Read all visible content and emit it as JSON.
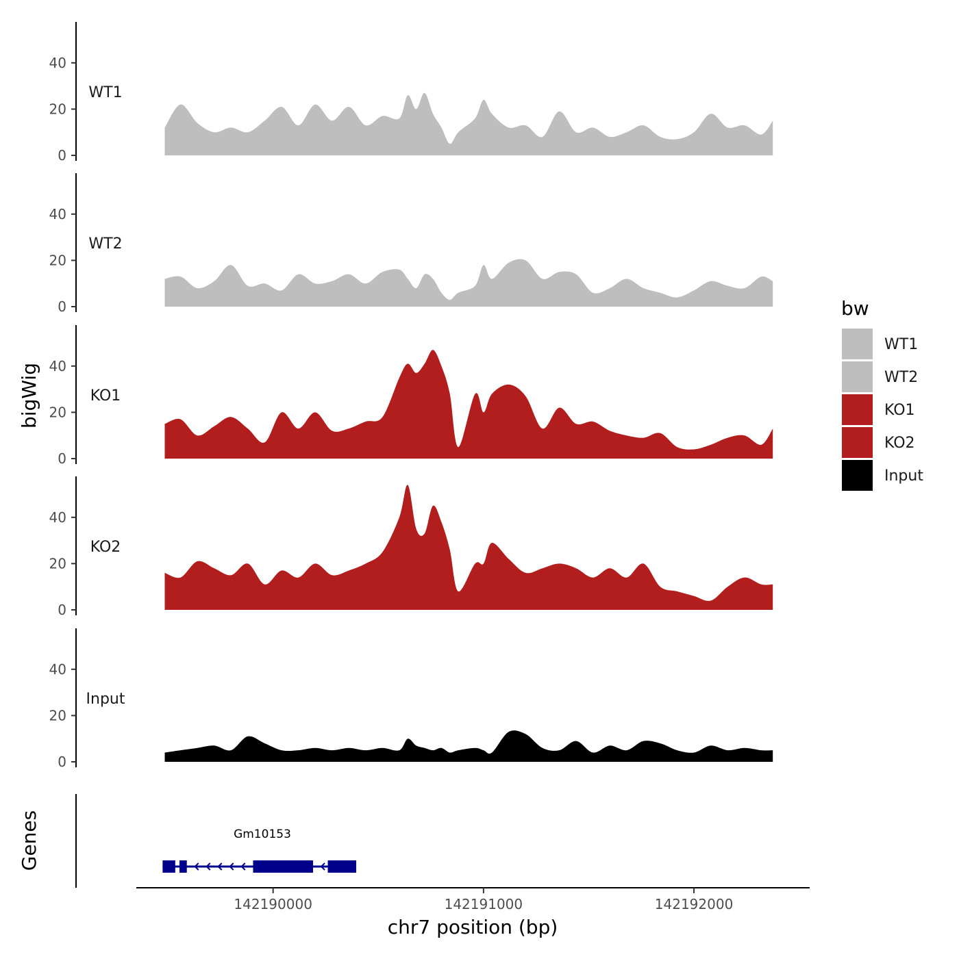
{
  "chart_data": {
    "type": "area",
    "title": "",
    "xlabel": "chr7 position (bp)",
    "ylabel": "bigWig",
    "genes_label": "Genes",
    "xlim": [
      142189350,
      142192550
    ],
    "ylim": [
      0,
      57
    ],
    "x_ticks": [
      142190000,
      142191000,
      142192000
    ],
    "x_tick_labels": [
      "142190000",
      "142191000",
      "142192000"
    ],
    "y_ticks": [
      0,
      20,
      40
    ],
    "y_tick_labels": [
      "0",
      "20",
      "40"
    ],
    "legend": {
      "title": "bw",
      "position": "right",
      "items": [
        {
          "label": "WT1",
          "color": "#bebebe"
        },
        {
          "label": "WT2",
          "color": "#bebebe"
        },
        {
          "label": "KO1",
          "color": "#b21e1e"
        },
        {
          "label": "KO2",
          "color": "#b21e1e"
        },
        {
          "label": "Input",
          "color": "#000000"
        }
      ]
    },
    "x": [
      142189485,
      142189560,
      142189640,
      142189720,
      142189800,
      142189880,
      142189960,
      142190040,
      142190120,
      142190200,
      142190280,
      142190360,
      142190440,
      142190520,
      142190600,
      142190640,
      142190680,
      142190720,
      142190760,
      142190800,
      142190840,
      142190880,
      142190960,
      142191000,
      142191040,
      142191120,
      142191200,
      142191280,
      142191360,
      142191440,
      142191520,
      142191600,
      142191680,
      142191760,
      142191840,
      142191920,
      142192000,
      142192080,
      142192160,
      142192240,
      142192320,
      142192375
    ],
    "series": [
      {
        "name": "WT1",
        "color": "#bebebe",
        "values": [
          12,
          22,
          14,
          10,
          12,
          10,
          15,
          21,
          13,
          22,
          15,
          21,
          13,
          17,
          16,
          26,
          20,
          27,
          18,
          12,
          5,
          10,
          16,
          24,
          18,
          12,
          13,
          8,
          19,
          10,
          12,
          8,
          10,
          13,
          8,
          7,
          10,
          18,
          12,
          13,
          9,
          15
        ]
      },
      {
        "name": "WT2",
        "color": "#bebebe",
        "values": [
          12,
          13,
          8,
          11,
          18,
          9,
          10,
          7,
          14,
          10,
          11,
          14,
          10,
          15,
          16,
          12,
          8,
          14,
          12,
          6,
          3,
          6,
          9,
          18,
          12,
          19,
          20,
          12,
          15,
          14,
          6,
          8,
          12,
          8,
          6,
          4,
          7,
          11,
          9,
          8,
          13,
          11
        ]
      },
      {
        "name": "KO1",
        "color": "#b21e1e",
        "values": [
          15,
          17,
          10,
          14,
          18,
          13,
          7,
          20,
          13,
          20,
          12,
          13,
          16,
          18,
          35,
          41,
          37,
          41,
          47,
          40,
          28,
          5,
          28,
          20,
          28,
          32,
          27,
          13,
          22,
          15,
          16,
          12,
          10,
          9,
          11,
          5,
          4,
          6,
          9,
          10,
          6,
          13
        ]
      },
      {
        "name": "KO2",
        "color": "#b21e1e",
        "values": [
          16,
          14,
          21,
          18,
          15,
          20,
          11,
          17,
          14,
          20,
          15,
          17,
          20,
          25,
          40,
          54,
          35,
          33,
          45,
          38,
          26,
          8,
          20,
          20,
          29,
          22,
          16,
          18,
          20,
          18,
          14,
          18,
          14,
          20,
          10,
          8,
          6,
          4,
          10,
          14,
          11,
          11
        ]
      },
      {
        "name": "Input",
        "color": "#000000",
        "values": [
          4,
          5,
          6,
          7,
          5,
          11,
          8,
          5,
          5,
          6,
          5,
          6,
          5,
          6,
          5,
          10,
          7,
          6,
          5,
          6,
          4,
          5,
          6,
          5,
          4,
          13,
          12,
          6,
          5,
          9,
          4,
          7,
          5,
          9,
          8,
          5,
          4,
          7,
          5,
          6,
          5,
          5
        ]
      }
    ],
    "gene": {
      "name": "Gm10153",
      "strand": "-",
      "color": "#00008b",
      "start": 142189475,
      "end": 142190395,
      "exons": [
        [
          142189475,
          142189535
        ],
        [
          142189555,
          142189590
        ],
        [
          142189905,
          142190190
        ],
        [
          142190260,
          142190395
        ]
      ]
    }
  }
}
